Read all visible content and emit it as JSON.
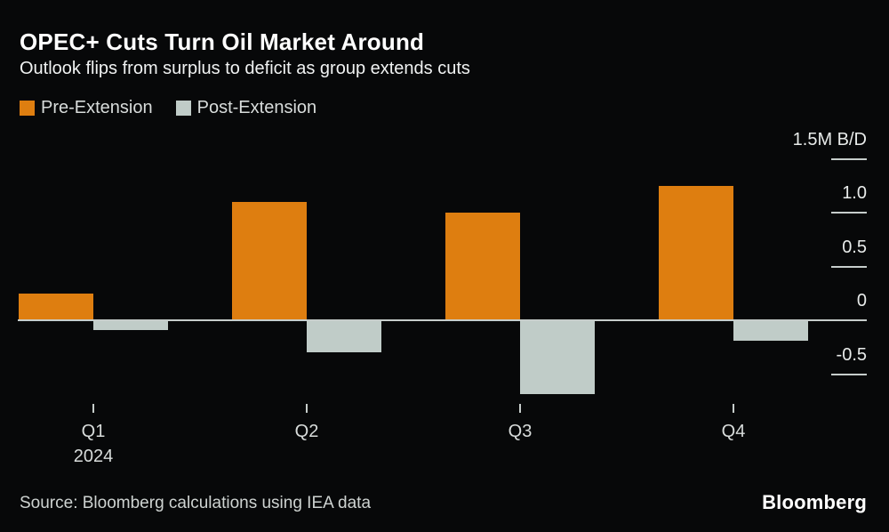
{
  "header": {
    "title": "OPEC+ Cuts Turn Oil Market Around",
    "subtitle": "Outlook flips from surplus to deficit as group extends cuts"
  },
  "legend": {
    "items": [
      {
        "label": "Pre-Extension",
        "color": "#de7e10"
      },
      {
        "label": "Post-Extension",
        "color": "#c0ccc8"
      }
    ]
  },
  "chart_data": {
    "type": "bar",
    "title": "OPEC+ Cuts Turn Oil Market Around",
    "subtitle": "Outlook flips from surplus to deficit as group extends cuts",
    "unit": "M B/D (million barrels per day, market balance)",
    "categories": [
      "Q1",
      "Q2",
      "Q3",
      "Q4"
    ],
    "x_axis_sub_label": "2024",
    "series": [
      {
        "name": "Pre-Extension",
        "color": "#de7e10",
        "values": [
          0.25,
          1.1,
          1.0,
          1.25
        ]
      },
      {
        "name": "Post-Extension",
        "color": "#c0ccc8",
        "values": [
          -0.09,
          -0.3,
          -0.69,
          -0.19
        ]
      }
    ],
    "y_axis": {
      "ticks": [
        {
          "label": "1.5M B/D",
          "value": 1.5
        },
        {
          "label": "1.0",
          "value": 1.0
        },
        {
          "label": "0.5",
          "value": 0.5
        },
        {
          "label": "0",
          "value": 0
        },
        {
          "label": "-0.5",
          "value": -0.5
        }
      ],
      "range": [
        -0.75,
        1.55
      ]
    },
    "grid": false,
    "legend_position": "top-left",
    "baseline": 0
  },
  "footer": {
    "source": "Source: Bloomberg calculations using IEA data",
    "brand": "Bloomberg"
  },
  "colors": {
    "background": "#070809",
    "axis_line": "#c6cdcb",
    "axis_text": "#e8ebea",
    "x_label_text": "#d8dcdb",
    "title_text": "#ffffff",
    "subtitle_text": "#f0f2f2",
    "legend_text": "#d8dcdb",
    "source_text": "#ced3d1",
    "pre_extension": "#de7e10",
    "post_extension": "#c0ccc8"
  }
}
